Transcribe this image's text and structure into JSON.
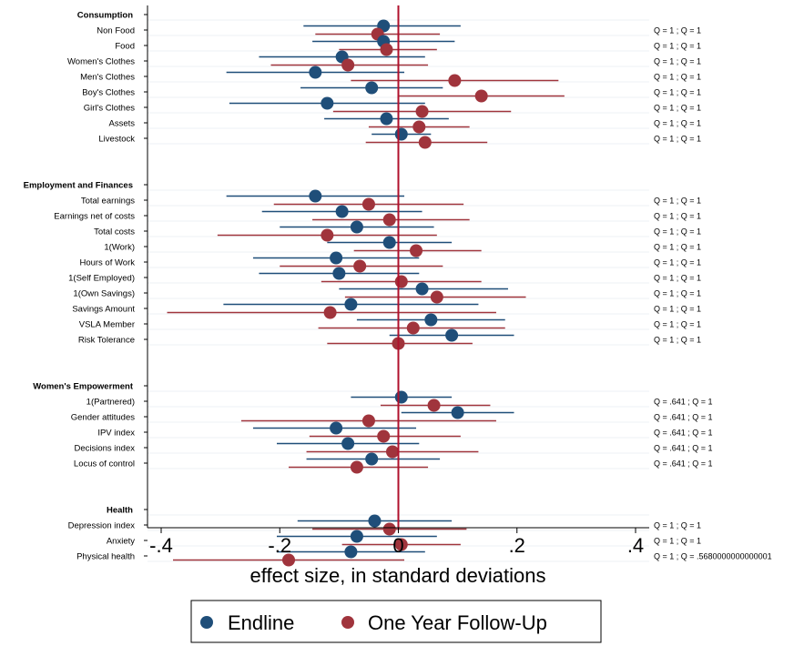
{
  "chart_data": {
    "type": "scatter",
    "xlabel": "effect size, in standard deviations",
    "xlim": [
      -0.42,
      0.42
    ],
    "xticks": [
      -0.4,
      -0.2,
      0,
      0.2,
      0.4
    ],
    "xtick_labels": [
      "-.4",
      "-.2",
      "0",
      ".2",
      ".4"
    ],
    "reference_line_x": 0,
    "grid": "horizontal",
    "legend_position": "bottom",
    "series": [
      {
        "name": "Endline",
        "color": "#1f4e79"
      },
      {
        "name": "One Year Follow-Up",
        "color": "#a0343c"
      }
    ],
    "groups": [
      {
        "title": "Consumption",
        "rows": [
          {
            "label": "Non Food",
            "q": "Q = 1 ; Q = 1",
            "endline": [
              -0.025,
              -0.16,
              0.105
            ],
            "followup": [
              -0.035,
              -0.14,
              0.07
            ]
          },
          {
            "label": "Food",
            "q": "Q = 1 ; Q = 1",
            "endline": [
              -0.025,
              -0.145,
              0.095
            ],
            "followup": [
              -0.02,
              -0.1,
              0.065
            ]
          },
          {
            "label": "Women's Clothes",
            "q": "Q = 1 ; Q = 1",
            "endline": [
              -0.095,
              -0.235,
              0.045
            ],
            "followup": [
              -0.085,
              -0.215,
              0.05
            ]
          },
          {
            "label": "Men's Clothes",
            "q": "Q = 1 ; Q = 1",
            "endline": [
              -0.14,
              -0.29,
              0.01
            ],
            "followup": [
              0.095,
              -0.08,
              0.27
            ]
          },
          {
            "label": "Boy's Clothes",
            "q": "Q = 1 ; Q = 1",
            "endline": [
              -0.045,
              -0.165,
              0.075
            ],
            "followup": [
              0.14,
              0.0,
              0.28
            ]
          },
          {
            "label": "Girl's Clothes",
            "q": "Q = 1 ; Q = 1",
            "endline": [
              -0.12,
              -0.285,
              0.045
            ],
            "followup": [
              0.04,
              -0.11,
              0.19
            ]
          },
          {
            "label": "Assets",
            "q": "Q = 1 ; Q = 1",
            "endline": [
              -0.02,
              -0.125,
              0.085
            ],
            "followup": [
              0.035,
              -0.05,
              0.12
            ]
          },
          {
            "label": "Livestock",
            "q": "Q = 1 ; Q = 1",
            "endline": [
              0.005,
              -0.045,
              0.055
            ],
            "followup": [
              0.045,
              -0.055,
              0.15
            ]
          }
        ]
      },
      {
        "title": "Employment and Finances",
        "rows": [
          {
            "label": "Total earnings",
            "q": "Q = 1 ; Q = 1",
            "endline": [
              -0.14,
              -0.29,
              0.01
            ],
            "followup": [
              -0.05,
              -0.21,
              0.11
            ]
          },
          {
            "label": "Earnings net of costs",
            "q": "Q = 1 ; Q = 1",
            "endline": [
              -0.095,
              -0.23,
              0.04
            ],
            "followup": [
              -0.015,
              -0.145,
              0.12
            ]
          },
          {
            "label": "Total costs",
            "q": "Q = 1 ; Q = 1",
            "endline": [
              -0.07,
              -0.2,
              0.06
            ],
            "followup": [
              -0.12,
              -0.305,
              0.065
            ]
          },
          {
            "label": "1(Work)",
            "q": "Q = 1 ; Q = 1",
            "endline": [
              -0.015,
              -0.12,
              0.09
            ],
            "followup": [
              0.03,
              -0.075,
              0.14
            ]
          },
          {
            "label": "Hours of Work",
            "q": "Q = 1 ; Q = 1",
            "endline": [
              -0.105,
              -0.245,
              0.035
            ],
            "followup": [
              -0.065,
              -0.2,
              0.075
            ]
          },
          {
            "label": "1(Self Employed)",
            "q": "Q = 1 ; Q = 1",
            "endline": [
              -0.1,
              -0.235,
              0.035
            ],
            "followup": [
              0.005,
              -0.13,
              0.14
            ]
          },
          {
            "label": "1(Own Savings)",
            "q": "Q = 1 ; Q = 1",
            "endline": [
              0.04,
              -0.1,
              0.185
            ],
            "followup": [
              0.065,
              -0.09,
              0.215
            ]
          },
          {
            "label": "Savings Amount",
            "q": "Q = 1 ; Q = 1",
            "endline": [
              -0.08,
              -0.295,
              0.135
            ],
            "followup": [
              -0.115,
              -0.39,
              0.165
            ]
          },
          {
            "label": "VSLA Member",
            "q": "Q = 1 ; Q = 1",
            "endline": [
              0.055,
              -0.07,
              0.18
            ],
            "followup": [
              0.025,
              -0.135,
              0.18
            ]
          },
          {
            "label": "Risk Tolerance",
            "q": "Q = 1 ; Q = 1",
            "endline": [
              0.09,
              -0.015,
              0.195
            ],
            "followup": [
              0.0,
              -0.12,
              0.125
            ]
          }
        ]
      },
      {
        "title": "Women's Empowerment",
        "rows": [
          {
            "label": "1(Partnered)",
            "q": "Q = .641 ; Q = 1",
            "endline": [
              0.005,
              -0.08,
              0.09
            ],
            "followup": [
              0.06,
              -0.03,
              0.155
            ]
          },
          {
            "label": "Gender attitudes",
            "q": "Q = .641 ; Q = 1",
            "endline": [
              0.1,
              0.005,
              0.195
            ],
            "followup": [
              -0.05,
              -0.265,
              0.165
            ]
          },
          {
            "label": "IPV index",
            "q": "Q = .641 ; Q = 1",
            "endline": [
              -0.105,
              -0.245,
              0.03
            ],
            "followup": [
              -0.025,
              -0.15,
              0.105
            ]
          },
          {
            "label": "Decisions index",
            "q": "Q = .641 ; Q = 1",
            "endline": [
              -0.085,
              -0.205,
              0.035
            ],
            "followup": [
              -0.01,
              -0.155,
              0.135
            ]
          },
          {
            "label": "Locus of control",
            "q": "Q = .641 ; Q = 1",
            "endline": [
              -0.045,
              -0.155,
              0.07
            ],
            "followup": [
              -0.07,
              -0.185,
              0.05
            ]
          }
        ]
      },
      {
        "title": "Health",
        "rows": [
          {
            "label": "Depression index",
            "q": "Q = 1 ; Q = 1",
            "endline": [
              -0.04,
              -0.17,
              0.09
            ],
            "followup": [
              -0.015,
              -0.145,
              0.115
            ]
          },
          {
            "label": "Anxiety",
            "q": "Q = 1 ; Q = 1",
            "endline": [
              -0.07,
              -0.205,
              0.065
            ],
            "followup": [
              0.005,
              -0.095,
              0.105
            ]
          },
          {
            "label": "Physical health",
            "q": "Q = 1 ; Q = .5680000000000001",
            "endline": [
              -0.08,
              -0.205,
              0.045
            ],
            "followup": [
              -0.185,
              -0.38,
              0.01
            ]
          }
        ]
      }
    ]
  }
}
